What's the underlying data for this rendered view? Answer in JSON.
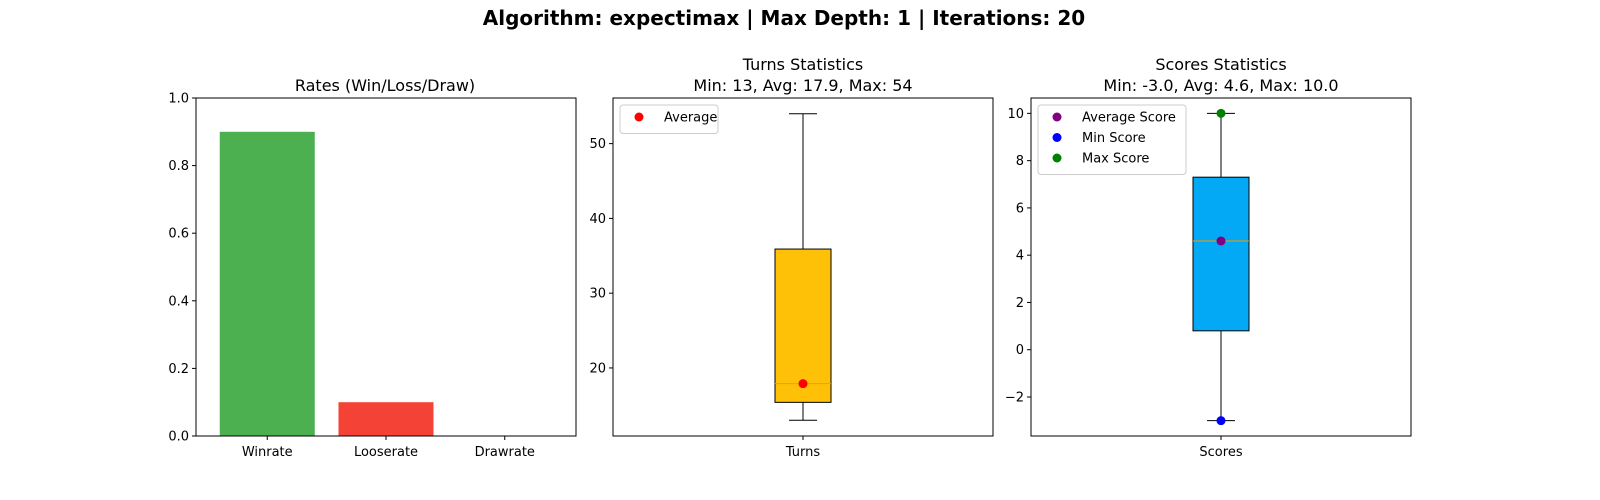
{
  "figure": {
    "suptitle": "Algorithm: expectimax | Max Depth: 1 | Iterations: 20"
  },
  "chart_data": [
    {
      "type": "bar",
      "title": "Rates (Win/Loss/Draw)",
      "categories": [
        "Winrate",
        "Looserate",
        "Drawrate"
      ],
      "values": [
        0.9,
        0.1,
        0.0
      ],
      "colors": [
        "#4caf50",
        "#f44336",
        "#2196f3"
      ],
      "ylim": [
        0,
        1
      ],
      "yticks": [
        0.0,
        0.2,
        0.4,
        0.6,
        0.8,
        1.0
      ],
      "ytick_labels": [
        "0.0",
        "0.2",
        "0.4",
        "0.6",
        "0.8",
        "1.0"
      ],
      "grid": false
    },
    {
      "type": "box",
      "title": "Turns Statistics",
      "subtitle": "Min: 13, Avg: 17.9, Max: 54",
      "category": "Turns",
      "box": {
        "whisker_low": 13,
        "q1": 15.4,
        "median": 17.9,
        "q3": 35.9,
        "whisker_high": 54,
        "fill": "#ffc107",
        "median_color": "#ff9800"
      },
      "points": [
        {
          "name": "Average",
          "value": 17.9,
          "color": "#ff0000"
        }
      ],
      "legend": [
        {
          "label": "Average",
          "color": "#ff0000"
        }
      ],
      "legend_position": "top-left",
      "ylim": [
        10.9,
        56.1
      ],
      "yticks": [
        20,
        30,
        40,
        50
      ],
      "ytick_labels": [
        "20",
        "30",
        "40",
        "50"
      ],
      "grid": false
    },
    {
      "type": "box",
      "title": "Scores Statistics",
      "subtitle": "Min: -3.0, Avg: 4.6, Max: 10.0",
      "category": "Scores",
      "box": {
        "whisker_low": -3.0,
        "q1": 0.8,
        "median": 4.6,
        "q3": 7.3,
        "whisker_high": 10.0,
        "fill": "#03a9f4",
        "median_color": "#ff9800"
      },
      "points": [
        {
          "name": "Average Score",
          "value": 4.6,
          "color": "#800080"
        },
        {
          "name": "Min Score",
          "value": -3.0,
          "color": "#0000ff"
        },
        {
          "name": "Max Score",
          "value": 10.0,
          "color": "#008000"
        }
      ],
      "legend": [
        {
          "label": "Average Score",
          "color": "#800080"
        },
        {
          "label": "Min Score",
          "color": "#0000ff"
        },
        {
          "label": "Max Score",
          "color": "#008000"
        }
      ],
      "legend_position": "top-left",
      "ylim": [
        -3.65,
        10.65
      ],
      "yticks": [
        -2,
        0,
        2,
        4,
        6,
        8,
        10
      ],
      "ytick_labels": [
        "−2",
        "0",
        "2",
        "4",
        "6",
        "8",
        "10"
      ],
      "grid": false
    }
  ]
}
